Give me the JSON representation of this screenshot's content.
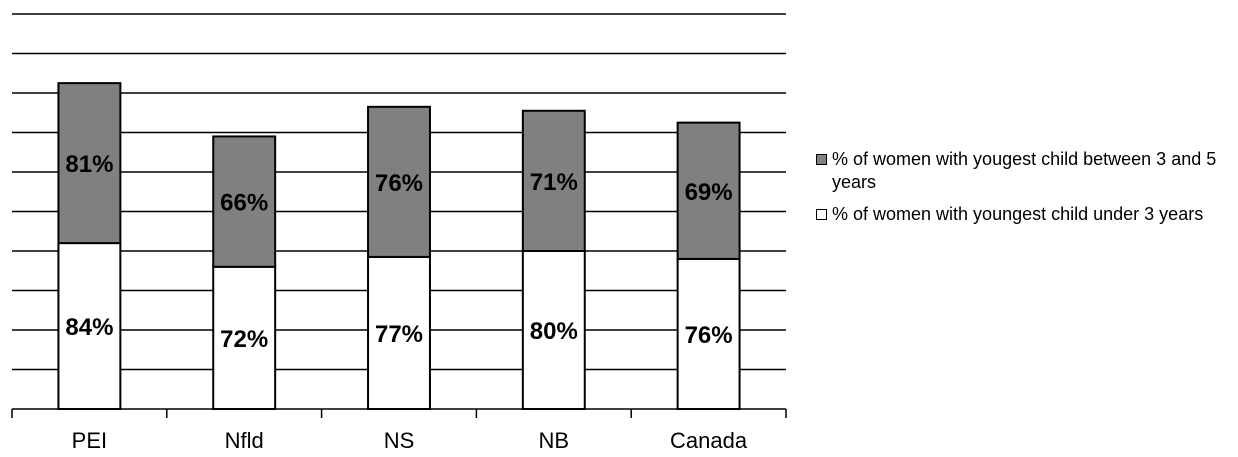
{
  "chart_data": {
    "type": "bar",
    "stacked": true,
    "categories": [
      "PEI",
      "Nfld",
      "NS",
      "NB",
      "Canada"
    ],
    "series": [
      {
        "name": "% of women with youngest child under 3 years",
        "values": [
          84,
          72,
          77,
          80,
          76
        ],
        "labels": [
          "84%",
          "72%",
          "77%",
          "80%",
          "76%"
        ],
        "color": "#ffffff"
      },
      {
        "name": "% of women with yougest child between 3 and 5 years",
        "values": [
          81,
          66,
          76,
          71,
          69
        ],
        "labels": [
          "81%",
          "66%",
          "76%",
          "71%",
          "69%"
        ],
        "color": "#808080"
      }
    ],
    "ylim": [
      0,
      200
    ],
    "grid": true,
    "legend": "right"
  }
}
